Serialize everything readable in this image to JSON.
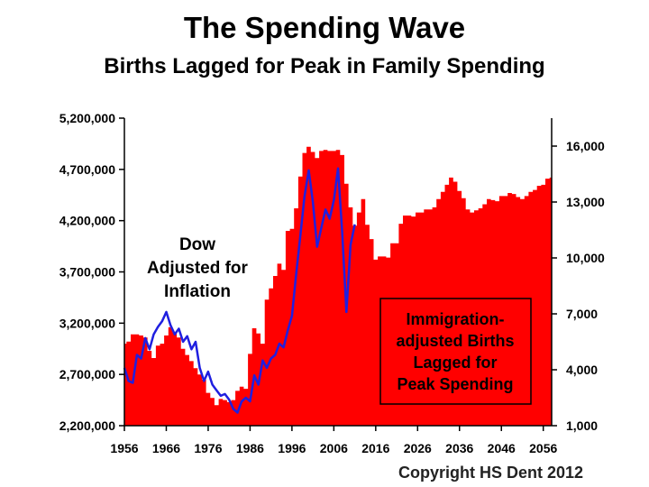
{
  "title": "The Spending Wave",
  "subtitle": "Births Lagged for Peak in Family Spending",
  "copyright": "Copyright HS Dent 2012",
  "colors": {
    "births_fill": "#ff0000",
    "dow_line": "#1f1fe0",
    "axis": "#000000",
    "annotation_text": "#000000"
  },
  "chart_data": {
    "type": "area",
    "xlim": [
      1956,
      2058
    ],
    "x_ticks": [
      "1956",
      "1966",
      "1976",
      "1986",
      "1996",
      "2006",
      "2016",
      "2026",
      "2036",
      "2046",
      "2056"
    ],
    "y_left": {
      "lim": [
        2200000,
        5200000
      ],
      "ticks": [
        "2,200,000",
        "2,700,000",
        "3,200,000",
        "3,700,000",
        "4,200,000",
        "4,700,000",
        "5,200,000"
      ]
    },
    "y_right": {
      "lim": [
        1000,
        17500
      ],
      "ticks": [
        "1,000",
        "4,000",
        "7,000",
        "10,000",
        "13,000",
        "16,000"
      ]
    },
    "annotations": {
      "dow": [
        "Dow",
        "Adjusted for",
        "Inflation"
      ],
      "births": [
        "Immigration-",
        "adjusted Births",
        "Lagged for",
        "Peak Spending"
      ]
    },
    "series": [
      {
        "axis": "left",
        "style": "area",
        "x": [
          1956,
          1957,
          1958,
          1959,
          1960,
          1961,
          1962,
          1963,
          1964,
          1965,
          1966,
          1967,
          1968,
          1969,
          1970,
          1971,
          1972,
          1973,
          1974,
          1975,
          1976,
          1977,
          1978,
          1979,
          1980,
          1981,
          1982,
          1983,
          1984,
          1985,
          1986,
          1987,
          1988,
          1989,
          1990,
          1991,
          1992,
          1993,
          1994,
          1995,
          1996,
          1997,
          1998,
          1999,
          2000,
          2001,
          2002,
          2003,
          2004,
          2005,
          2006,
          2007,
          2008,
          2009,
          2010,
          2011,
          2012,
          2013,
          2014,
          2015,
          2016,
          2017,
          2018,
          2019,
          2020,
          2021,
          2022,
          2023,
          2024,
          2025,
          2026,
          2027,
          2028,
          2029,
          2030,
          2031,
          2032,
          2033,
          2034,
          2035,
          2036,
          2037,
          2038,
          2039,
          2040,
          2041,
          2042,
          2043,
          2044,
          2045,
          2046,
          2047,
          2048,
          2049,
          2050,
          2051,
          2052,
          2053,
          2054,
          2055,
          2056,
          2057,
          2058
        ],
        "values": [
          3000000,
          3020000,
          3090000,
          3090000,
          3080000,
          3060000,
          2930000,
          2860000,
          2980000,
          3000000,
          3080000,
          3160000,
          3110000,
          3060000,
          2950000,
          2890000,
          2830000,
          2760000,
          2700000,
          2650000,
          2520000,
          2470000,
          2400000,
          2460000,
          2450000,
          2430000,
          2450000,
          2540000,
          2580000,
          2560000,
          2900000,
          3150000,
          3100000,
          3000000,
          3430000,
          3540000,
          3660000,
          3780000,
          3720000,
          4100000,
          4120000,
          4320000,
          4630000,
          4860000,
          4920000,
          4870000,
          4810000,
          4880000,
          4890000,
          4880000,
          4880000,
          4890000,
          4840000,
          4560000,
          4330000,
          4150000,
          4280000,
          4410000,
          4160000,
          4020000,
          3820000,
          3850000,
          3850000,
          3840000,
          3980000,
          3980000,
          4170000,
          4250000,
          4250000,
          4240000,
          4280000,
          4280000,
          4310000,
          4310000,
          4330000,
          4410000,
          4480000,
          4550000,
          4620000,
          4580000,
          4490000,
          4420000,
          4310000,
          4280000,
          4300000,
          4320000,
          4360000,
          4410000,
          4400000,
          4390000,
          4440000,
          4440000,
          4470000,
          4460000,
          4430000,
          4410000,
          4440000,
          4480000,
          4500000,
          4540000,
          4550000,
          4610000,
          4620000
        ]
      },
      {
        "name": "Dow",
        "axis": "right",
        "style": "line",
        "x": [
          1956,
          1957,
          1958,
          1959,
          1960,
          1961,
          1962,
          1963,
          1964,
          1965,
          1966,
          1967,
          1968,
          1969,
          1970,
          1971,
          1972,
          1973,
          1974,
          1975,
          1976,
          1977,
          1978,
          1979,
          1980,
          1981,
          1982,
          1983,
          1984,
          1985,
          1986,
          1987,
          1988,
          1989,
          1990,
          1991,
          1992,
          1993,
          1994,
          1995,
          1996,
          1997,
          1998,
          1999,
          2000,
          2001,
          2002,
          2003,
          2004,
          2005,
          2006,
          2007,
          2008,
          2009,
          2010,
          2011
        ],
        "values": [
          4100,
          3400,
          3300,
          4800,
          4600,
          5700,
          5100,
          5900,
          6300,
          6600,
          7100,
          6400,
          5900,
          6200,
          5500,
          5800,
          5100,
          5500,
          4100,
          3400,
          3900,
          3200,
          2900,
          2600,
          2700,
          2400,
          1900,
          1700,
          2300,
          2500,
          2300,
          3700,
          3200,
          4500,
          4100,
          4600,
          4800,
          5400,
          5200,
          6100,
          6900,
          9100,
          11200,
          13300,
          14700,
          13000,
          10600,
          11600,
          12600,
          12100,
          13100,
          14800,
          11400,
          7100,
          10700,
          11800
        ]
      }
    ]
  }
}
